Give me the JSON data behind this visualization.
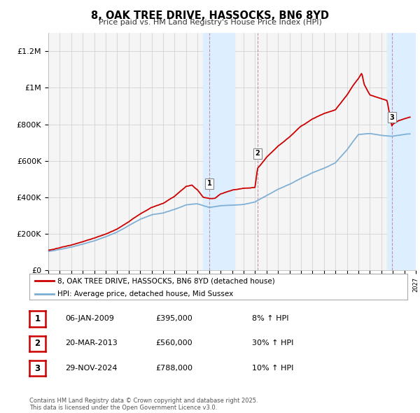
{
  "title": "8, OAK TREE DRIVE, HASSOCKS, BN6 8YD",
  "subtitle": "Price paid vs. HM Land Registry's House Price Index (HPI)",
  "red_label": "8, OAK TREE DRIVE, HASSOCKS, BN6 8YD (detached house)",
  "blue_label": "HPI: Average price, detached house, Mid Sussex",
  "transactions": [
    {
      "num": 1,
      "date": "06-JAN-2009",
      "price": 395000,
      "pct": "8%",
      "dir": "↑"
    },
    {
      "num": 2,
      "date": "20-MAR-2013",
      "price": 560000,
      "pct": "30%",
      "dir": "↑"
    },
    {
      "num": 3,
      "date": "29-NOV-2024",
      "price": 788000,
      "pct": "10%",
      "dir": "↑"
    }
  ],
  "footnote": "Contains HM Land Registry data © Crown copyright and database right 2025.\nThis data is licensed under the Open Government Licence v3.0.",
  "ylim": [
    0,
    1300000
  ],
  "yticks": [
    0,
    200000,
    400000,
    600000,
    800000,
    1000000,
    1200000
  ],
  "ytick_labels": [
    "£0",
    "£200K",
    "£400K",
    "£600K",
    "£800K",
    "£1M",
    "£1.2M"
  ],
  "x_start_year": 1995,
  "x_end_year": 2027,
  "red_color": "#cc0000",
  "blue_color": "#7aadd4",
  "shade_color": "#ddeeff",
  "grid_color": "#cccccc",
  "bg_color": "#f5f5f5"
}
